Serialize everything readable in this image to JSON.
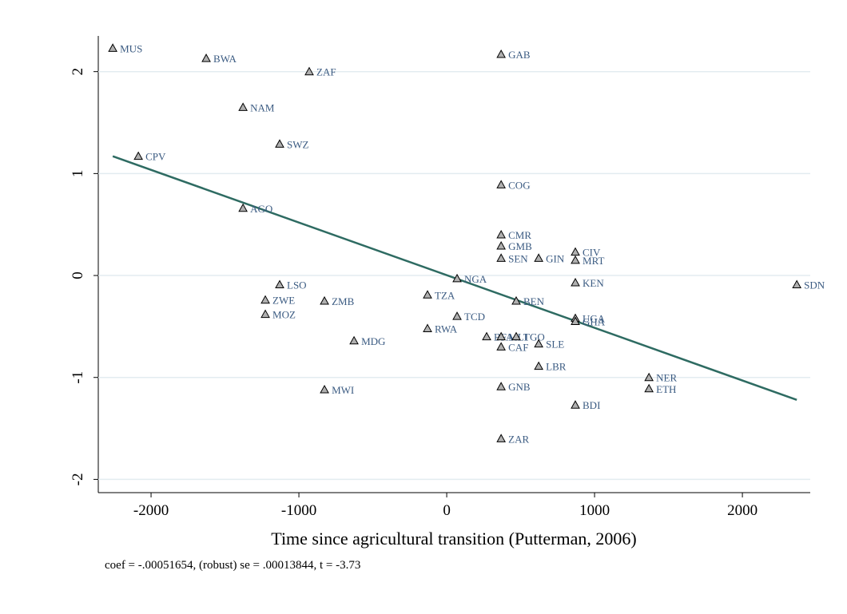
{
  "chart_data": {
    "type": "scatter",
    "x_label": "Time since agricultural transition (Putterman, 2006)",
    "note": "coef = -.00051654, (robust) se = .00013844, t = -3.73",
    "point_labels": [
      "MUS",
      "BWA",
      "ZAF",
      "GAB",
      "NAM",
      "SWZ",
      "CPV",
      "COG",
      "AGO",
      "CMR",
      "GMB",
      "SEN",
      "GIN",
      "CIV",
      "MRT",
      "KEN",
      "SDN",
      "LSO",
      "NGA",
      "TZA",
      "ZWE",
      "ZMB",
      "BEN",
      "MOZ",
      "TCD",
      "UGA",
      "GHA",
      "RWA",
      "BFA",
      "MLI",
      "TGO",
      "MDG",
      "SLE",
      "CAF",
      "LBR",
      "NER",
      "ETH",
      "GNB",
      "MWI",
      "BDI",
      "ZAR"
    ],
    "x": [
      -2259,
      -1627,
      -930,
      368,
      -1378,
      -1130,
      -2086,
      368,
      -1378,
      368,
      368,
      368,
      622,
      870,
      870,
      870,
      2368,
      -1130,
      70,
      -130,
      -1227,
      -827,
      470,
      -1227,
      70,
      870,
      870,
      -130,
      270,
      368,
      470,
      -627,
      622,
      368,
      622,
      1368,
      1368,
      368,
      -827,
      870,
      368
    ],
    "values": [
      2.23,
      2.13,
      2.0,
      2.17,
      1.65,
      1.29,
      1.17,
      0.89,
      0.66,
      0.4,
      0.29,
      0.17,
      0.17,
      0.23,
      0.15,
      -0.07,
      -0.09,
      -0.09,
      -0.03,
      -0.19,
      -0.24,
      -0.25,
      -0.25,
      -0.38,
      -0.4,
      -0.42,
      -0.45,
      -0.52,
      -0.6,
      -0.6,
      -0.6,
      -0.64,
      -0.67,
      -0.7,
      -0.89,
      -1.0,
      -1.11,
      -1.09,
      -1.12,
      -1.27,
      -1.6
    ],
    "marker_color": "#b0b0b0",
    "label_color": "#3b5b82",
    "fit_line": {
      "x": [
        -2259,
        2368
      ],
      "y": [
        1.17,
        -1.22
      ],
      "color": "#2e6b62"
    },
    "xlim": [
      -2357,
      2459
    ],
    "ylim": [
      -2.13,
      2.35
    ],
    "xticks": [
      -2000,
      -1000,
      0,
      1000,
      2000
    ],
    "yticks": [
      -2,
      -1,
      0,
      1,
      2
    ],
    "grid": true
  }
}
